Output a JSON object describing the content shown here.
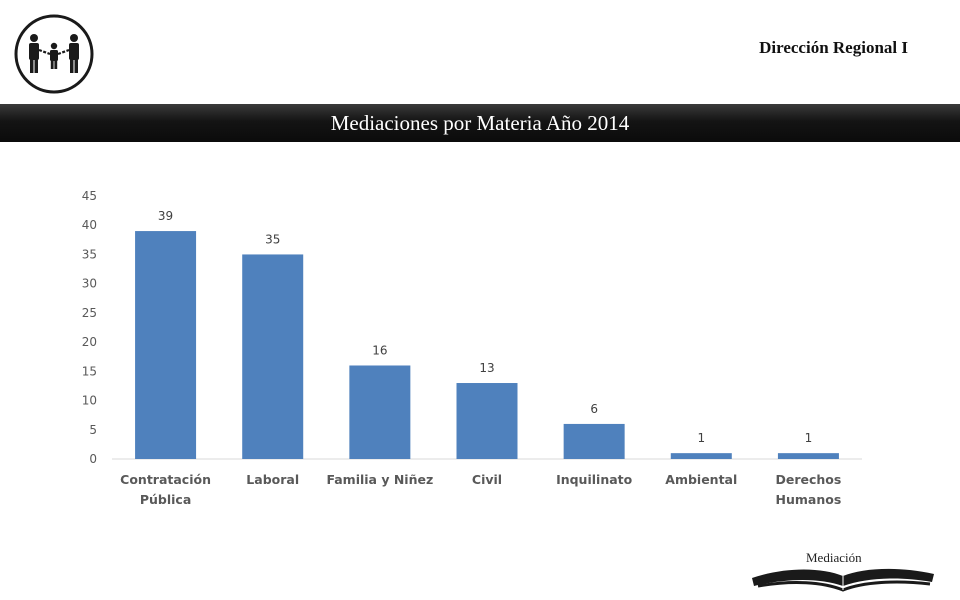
{
  "header": {
    "region": "Dirección Regional I",
    "title": "Mediaciones por  Materia Año 2014"
  },
  "footer": {
    "label": "Mediación"
  },
  "icons": {
    "logo": "family-mediation-logo-icon",
    "book": "open-book-icon"
  },
  "chart_data": {
    "type": "bar",
    "categories": [
      [
        "Contratación",
        "Pública"
      ],
      [
        "Laboral"
      ],
      [
        "Familia y Niñez"
      ],
      [
        "Civil"
      ],
      [
        "Inquilinato"
      ],
      [
        "Ambiental"
      ],
      [
        "Derechos",
        "Humanos"
      ]
    ],
    "values": [
      39,
      35,
      16,
      13,
      6,
      1,
      1
    ],
    "ylim": [
      0,
      45
    ],
    "yticks": [
      0,
      5,
      10,
      15,
      20,
      25,
      30,
      35,
      40,
      45
    ],
    "grid": false,
    "legend": "none",
    "bar_color": "#4f81bd"
  }
}
